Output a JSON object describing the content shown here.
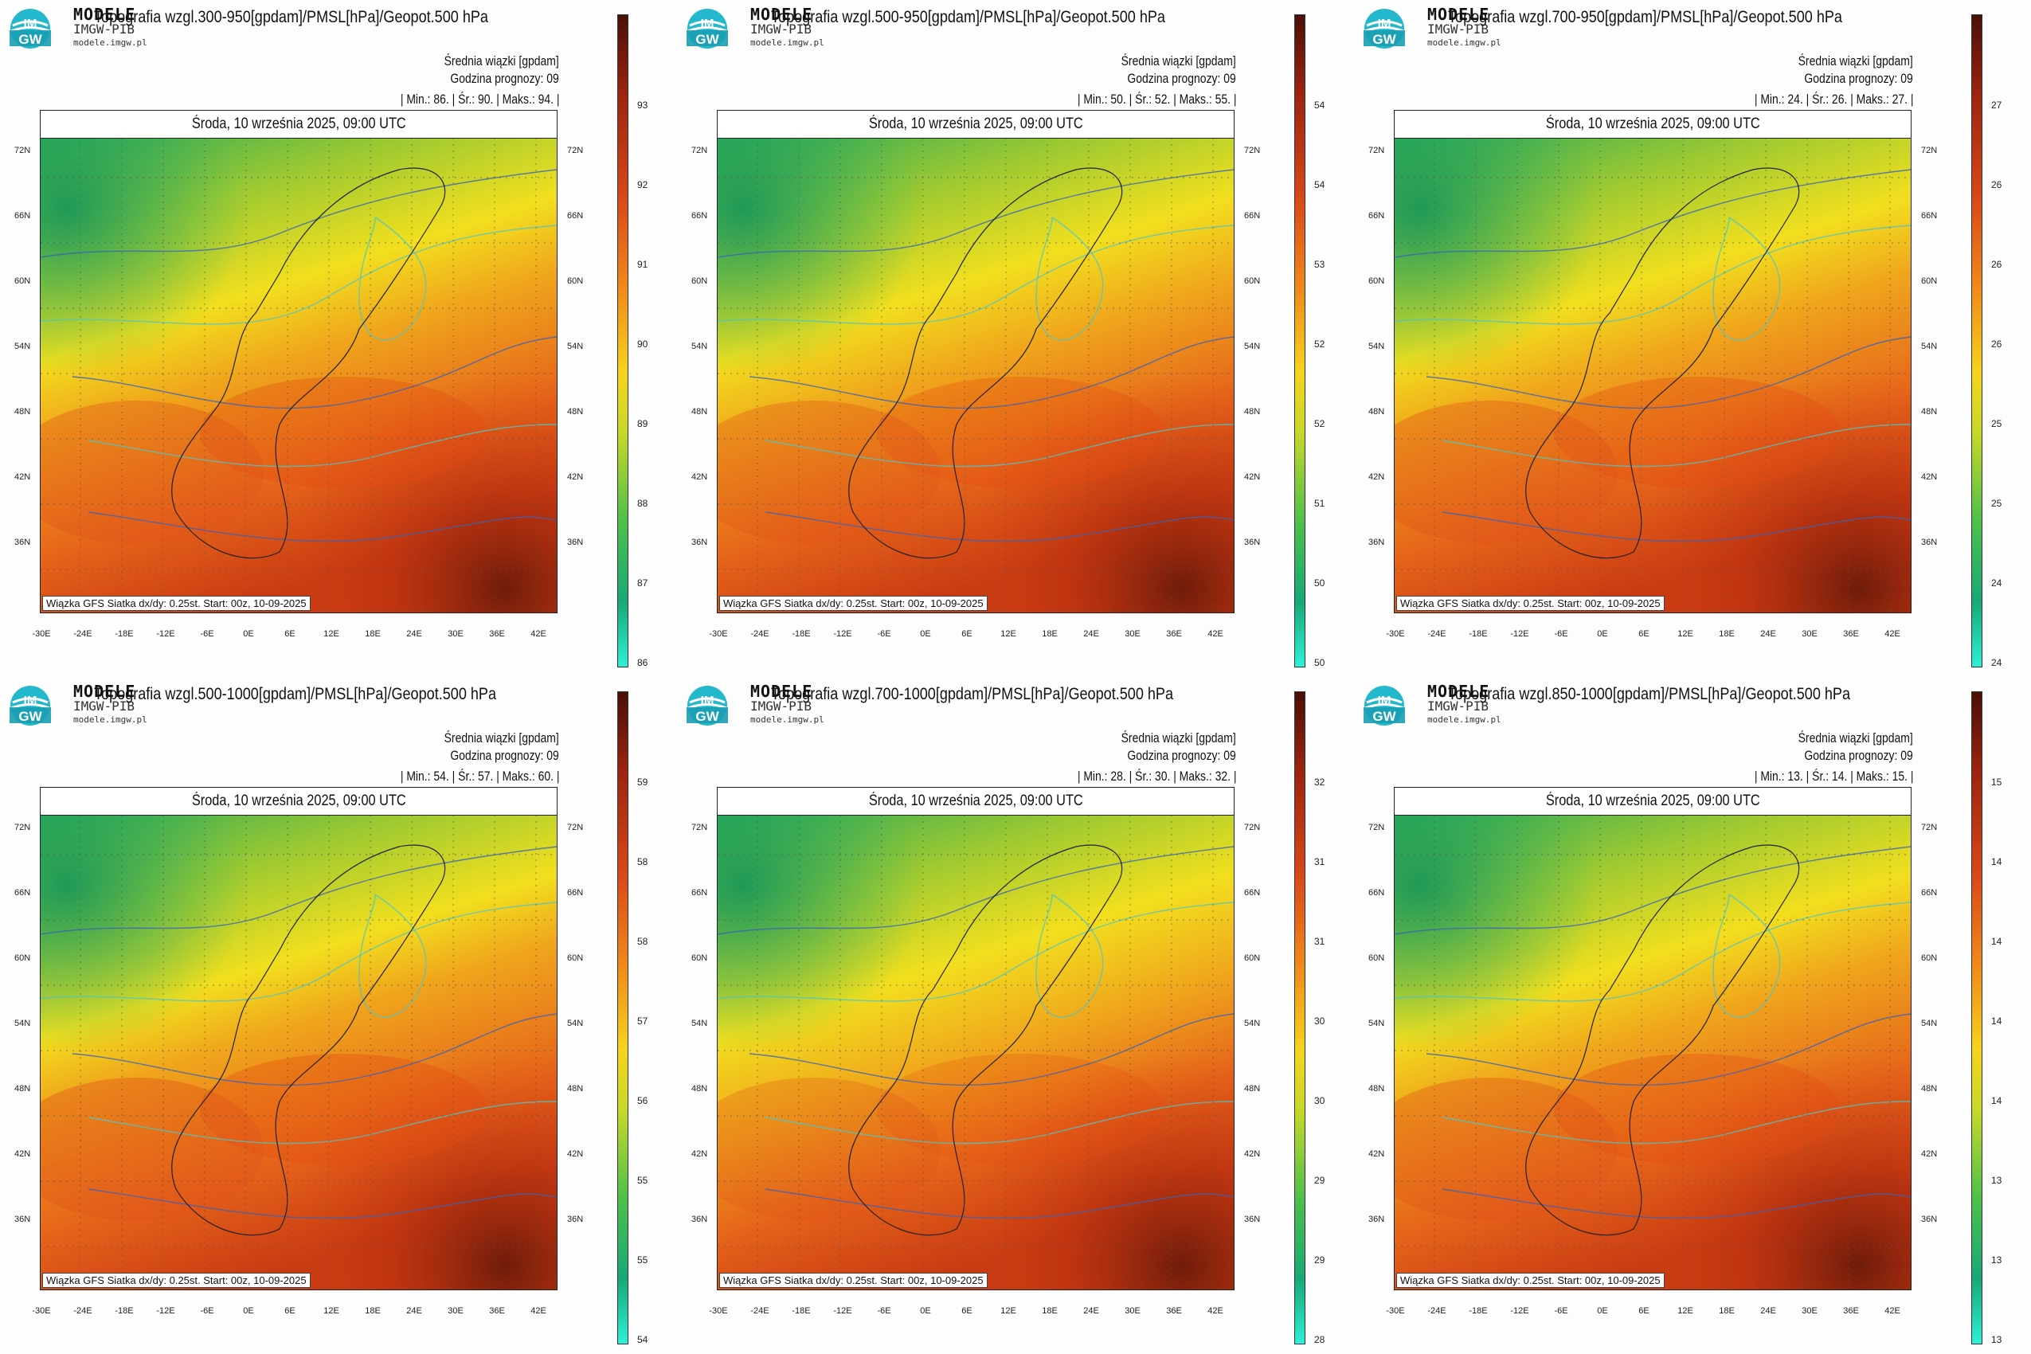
{
  "logo": {
    "brand_top": "MODELE",
    "brand_mid": "IMGW-PIB",
    "brand_url": "modele.imgw.pl",
    "logo_text": "IMGW"
  },
  "common": {
    "info_line1": "Średnia wiązki [gpdam]",
    "info_line2": "Godzina prognozy: 09",
    "date_line": "Środa, 10 września 2025, 09:00 UTC",
    "footnote": "Wiązka GFS Siatka dx/dy: 0.25st. Start: 00z, 10-09-2025",
    "lat_labels": [
      "72N",
      "66N",
      "60N",
      "54N",
      "48N",
      "42N",
      "36N"
    ],
    "lon_labels": [
      "-30E",
      "-24E",
      "-18E",
      "-12E",
      "-6E",
      "0E",
      "6E",
      "12E",
      "18E",
      "24E",
      "30E",
      "36E",
      "42E"
    ],
    "colors": {
      "cool": "#22a35a",
      "mid": "#f3e21c",
      "warm": "#e8641c",
      "hot": "#5a1608",
      "contour_slp": "#3a63b8",
      "contour_geo": "#4fc6c6"
    }
  },
  "panels": [
    {
      "title": "Topografia wzgl.300-950[gpdam]/PMSL[hPa]/Geopot.500 hPa",
      "stats": "| Min.: 86. | Śr.: 90. | Maks.: 94. |",
      "colorbar": [
        "93",
        "92",
        "91",
        "90",
        "89",
        "88",
        "87",
        "86"
      ]
    },
    {
      "title": "Topografia wzgl.500-950[gpdam]/PMSL[hPa]/Geopot.500 hPa",
      "stats": "| Min.: 50. | Śr.: 52. | Maks.: 55. |",
      "colorbar": [
        "54",
        "54",
        "53",
        "52",
        "52",
        "51",
        "50",
        "50"
      ]
    },
    {
      "title": "Topografia wzgl.700-950[gpdam]/PMSL[hPa]/Geopot.500 hPa",
      "stats": "| Min.: 24. | Śr.: 26. | Maks.: 27. |",
      "colorbar": [
        "27",
        "26",
        "26",
        "26",
        "25",
        "25",
        "24",
        "24"
      ]
    },
    {
      "title": "Topografia wzgl.500-1000[gpdam]/PMSL[hPa]/Geopot.500 hPa",
      "stats": "| Min.: 54. | Śr.: 57. | Maks.: 60. |",
      "colorbar": [
        "59",
        "58",
        "58",
        "57",
        "56",
        "55",
        "55",
        "54"
      ]
    },
    {
      "title": "Topografia wzgl.700-1000[gpdam]/PMSL[hPa]/Geopot.500 hPa",
      "stats": "| Min.: 28. | Śr.: 30. | Maks.: 32. |",
      "colorbar": [
        "32",
        "31",
        "31",
        "30",
        "30",
        "29",
        "29",
        "28"
      ]
    },
    {
      "title": "Topografia wzgl.850-1000[gpdam]/PMSL[hPa]/Geopot.500 hPa",
      "stats": "| Min.: 13. | Śr.: 14. | Maks.: 15. |",
      "colorbar": [
        "15",
        "14",
        "14",
        "14",
        "14",
        "13",
        "13",
        "13"
      ]
    }
  ]
}
